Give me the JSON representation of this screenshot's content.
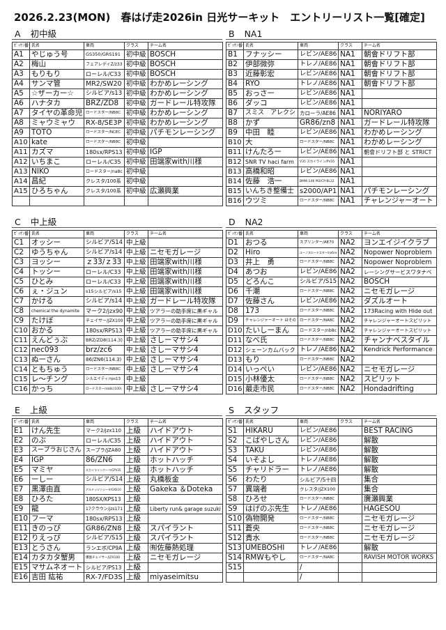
{
  "title": "2026.2.23(MON)　春はげ走2026in 日光サーキット　エントリーリスト一覧[確定]",
  "headers": [
    "ｾﾞｯｹﾝ番号",
    "氏名",
    "車両",
    "クラス",
    "チーム名"
  ],
  "sections": [
    {
      "letter": "A",
      "title": "初中級",
      "rows": [
        [
          "A1",
          "やじゅう号",
          "GS350/GRS191",
          "初中級",
          "BOSCH"
        ],
        [
          "A2",
          "梅山",
          "フェアレディZ/z33",
          "初中級",
          "BOSCH"
        ],
        [
          "A3",
          "もりもり",
          "ローレル/C33",
          "初中級",
          "BOSCH"
        ],
        [
          "A4",
          "サンマ管",
          "MR2/SW20",
          "初中級",
          "わかめレーシング"
        ],
        [
          "A5",
          "☆ザーカー☆",
          "シルビア/s13",
          "初中級",
          "わかめレーシング"
        ],
        [
          "A6",
          "ハナタカ",
          "BRZ/ZD8",
          "初中級",
          "ガードレール特攻隊"
        ],
        [
          "A7",
          "タイヤの革命児",
          "ロードスター/NB8C",
          "初中級",
          "わかめレーシング"
        ],
        [
          "A8",
          "ミャウミャウ",
          "RX-8/SE3P",
          "初中級",
          "わかめレーシング"
        ],
        [
          "A9",
          "TOTO",
          "ロードスター/NCEC",
          "初中級",
          "パチモンレーシング"
        ],
        [
          "A10",
          "kate",
          "ロードスター/NB8C",
          "初中級",
          ""
        ],
        [
          "A11",
          "カズマ",
          "180sx/RPS13",
          "初中級",
          "IGP"
        ],
        [
          "A12",
          "いちまこ",
          "ローレル/C35",
          "初中級",
          "田端家with川様"
        ],
        [
          "A13",
          "NIKO",
          "ロードスター/na8c",
          "初中級",
          ""
        ],
        [
          "A14",
          "昌紀",
          "クレスタ/100系",
          "初中級",
          ""
        ],
        [
          "A15",
          "ひろちゃん",
          "クレスタ/100系",
          "初中級",
          "広瀬興業"
        ],
        [
          "",
          "",
          "",
          "",
          ""
        ]
      ]
    },
    {
      "letter": "B",
      "title": "NA1",
      "rows": [
        [
          "B1",
          "フナッシー",
          "レビン/AE86",
          "NA1",
          "朝會ドリフト部"
        ],
        [
          "B2",
          "伊部微弥",
          "トレノ/AE86",
          "NA1",
          "朝會ドリフト部"
        ],
        [
          "B3",
          "近藤彰宏",
          "レビン/AE86",
          "NA1",
          "朝會ドリフト部"
        ],
        [
          "B4",
          "RYO",
          "トレノ/AE86",
          "NA1",
          "朝會ドリフト部"
        ],
        [
          "B5",
          "おっさー",
          "レビン/AE86",
          "NA1",
          ""
        ],
        [
          "B6",
          "ダッコ",
          "レビン/AE86",
          "NA1",
          ""
        ],
        [
          "B7",
          "スミス　アレクシ",
          "カローラ/AE86",
          "NA1",
          "NORIYARO"
        ],
        [
          "B8",
          "かず",
          "GR86/zn8",
          "NA1",
          "ガードレール特攻隊"
        ],
        [
          "B9",
          "中田　睦",
          "レビン/AE86",
          "NA1",
          "わかめレーシング"
        ],
        [
          "B10",
          "大",
          "ロードスター/NB8C",
          "NA1",
          "わかめレーシング"
        ],
        [
          "B11",
          "けんたろー",
          "レビン/AE86",
          "NA1",
          "朝會ドリフト部 と STRICT"
        ],
        [
          "B12",
          "SNR TV haci farm",
          "V35 スカイライン/PV35",
          "NA1",
          ""
        ],
        [
          "B13",
          "高橋和昭",
          "レビン/AE86",
          "NA1",
          ""
        ],
        [
          "B14",
          "佐藤　浩一",
          "BMW E46 M3/CP-BL32",
          "NA1",
          ""
        ],
        [
          "B15",
          "いんちき整備士",
          "s2000/AP1",
          "NA1",
          "パチモンレーシング"
        ],
        [
          "B16",
          "ウツミ",
          "ロードスター/NB8C",
          "NA1",
          "チャレンジャーオート"
        ]
      ]
    },
    {
      "letter": "C",
      "title": "中上級",
      "rows": [
        [
          "C1",
          "オッシー",
          "シルビア/S14",
          "中上級",
          ""
        ],
        [
          "C2",
          "ゆうちゃん",
          "シルビア/s14",
          "中上級",
          "ニセモガレージ"
        ],
        [
          "C3",
          "ヨッシー",
          "ｚ33/ｚ33",
          "中上級",
          "田端家with川様"
        ],
        [
          "C4",
          "トッシー",
          "ローレル/C33",
          "中上級",
          "田端家with川様"
        ],
        [
          "C5",
          "ひとみ",
          "ローレル/C33",
          "中上級",
          "田端家with川様"
        ],
        [
          "C6",
          "ぇ・ジュン",
          "s15シルビア/s15",
          "中上級",
          "田端家with川様"
        ],
        [
          "C7",
          "かける",
          "シルビア/s14",
          "中上級",
          "ガードレール特攻隊"
        ],
        [
          "C8",
          "chemical the dynamite",
          "マーク2/jzx90",
          "中上級",
          "ツアラーの助手席に黒ギャル"
        ],
        [
          "C9",
          "たけぼ",
          "チェイサー/JZX100",
          "中上級",
          "ツアラーの助手席に黒ギャル"
        ],
        [
          "C10",
          "おかる",
          "180sx/RPS13",
          "中上級",
          "ツアラーの助手席に黒ギャル"
        ],
        [
          "C11",
          "えんどぅぶ",
          "BRZ/ZD8(114.3)",
          "中上級",
          "さしーマサシ4"
        ],
        [
          "C12",
          "nec093",
          "brz/zc6",
          "中上級",
          "さしーマサシ4"
        ],
        [
          "C13",
          "ぬーさん",
          "86/ZN6(114.3)",
          "中上級",
          "さしーマサシ4"
        ],
        [
          "C14",
          "ともちゅう",
          "ロードスター/NB8C",
          "中上級",
          "さしーマサシ4"
        ],
        [
          "C15",
          "レ～チング",
          "シルエイティ/rps13",
          "中上級",
          ""
        ],
        [
          "C16",
          "かっち",
          "ロードスター/nb8c(100)",
          "中上級",
          "さしーマサシ4"
        ]
      ]
    },
    {
      "letter": "D",
      "title": "NA2",
      "rows": [
        [
          "D1",
          "おつる",
          "スプリンター/AE70",
          "NA2",
          "ヨンエイジイクラブ"
        ],
        [
          "D2",
          "Hiro",
          "ユーノスロードスター/na6ce",
          "NA2",
          "Nopower Noproblem"
        ],
        [
          "D3",
          "井上　勇",
          "ロードスター/NB8C",
          "NA2",
          "Nopower Noproblem"
        ],
        [
          "D4",
          "あつお",
          "レビン/AE86",
          "NA2",
          "レーシングサービスワタナベ"
        ],
        [
          "D5",
          "どろんこ",
          "シルビア/S15",
          "NA2",
          "BOSCH"
        ],
        [
          "D6",
          "千潮",
          "ロードスター/NB8C",
          "NA2",
          "ニセモガレージ"
        ],
        [
          "D7",
          "佐藤さん",
          "レビン/AE86",
          "NA2",
          "ダズルオート"
        ],
        [
          "D8",
          "173",
          "ロードスター/NB8C",
          "NA2",
          "173Racing with Hide out"
        ],
        [
          "D9",
          "チャレンジャーオート ほその",
          "ロードスター/NA8C",
          "NA2",
          "チャレンジャーオートスピリット"
        ],
        [
          "D10",
          "たいしーまん",
          "ロードスター/nb8c",
          "NA2",
          "チャレンジャーオートスピリット"
        ],
        [
          "D11",
          "なべ氏",
          "ロードスター/NB8C",
          "NA2",
          "チャンナベスタイル"
        ],
        [
          "D12",
          "シェーンカムバック",
          "トレノ/AE86",
          "NA2",
          "Kendrick Performance"
        ],
        [
          "D13",
          "もり",
          "ロードスター/NB8C",
          "NA2",
          ""
        ],
        [
          "D14",
          "いっぺい",
          "レビン/AE86",
          "NA2",
          "ニセモガレージ"
        ],
        [
          "D15",
          "小林優太",
          "ロードスター/NB8C",
          "NA2",
          "スピリット"
        ],
        [
          "D16",
          "最走市民",
          "ロードスター/NB8C",
          "NA2",
          "Hondadrifting"
        ]
      ]
    },
    {
      "letter": "E",
      "title": "上級",
      "rows": [
        [
          "E1",
          "けん先生",
          "マーク2/jzx110",
          "上級",
          "ハイドアウト"
        ],
        [
          "E2",
          "のぶ",
          "ローレル/C35",
          "上級",
          "ハイドアウト"
        ],
        [
          "E3",
          "スープラおじさん",
          "スープラ/JZA80",
          "上級",
          "ハイドアウト"
        ],
        [
          "E4",
          "IGP",
          "86/ZN6",
          "上級",
          "ホットハッチ"
        ],
        [
          "E5",
          "マミヤ",
          "スカイラインクーペ/CPV35",
          "上級",
          "ホットハッチ"
        ],
        [
          "E6",
          "ーしー",
          "シルビア/S14",
          "上級",
          "丸橋板金"
        ],
        [
          "E7",
          "黒澤由直",
          "アルテッツァジータ/GXE10",
          "上級",
          "Gakeka ＆Doteka"
        ],
        [
          "E8",
          "ひろた",
          "180SX/KPS13",
          "上級",
          ""
        ],
        [
          "E9",
          "龍",
          "17クラウン/jzs171",
          "上級",
          "Liberty run& garage suzuki"
        ],
        [
          "E10",
          "フーマ",
          "180sx/RPS13",
          "上級",
          ""
        ],
        [
          "E11",
          "きのっぴ",
          "GR86/ZN8",
          "上級",
          "スパイラント"
        ],
        [
          "E12",
          "りえっぴ",
          "シルビア/S15",
          "上級",
          "スパイラント"
        ],
        [
          "E13",
          "とうさん",
          "ランエボ/CP9A",
          "上級",
          "㈲佐藤熱処理"
        ],
        [
          "E14",
          "カタカタ蟹男",
          "爆発チェイサー/JZX100",
          "上級",
          "ニセモガレージ"
        ],
        [
          "E15",
          "マサムネオート",
          "シルビア/PS13",
          "上級",
          ""
        ],
        [
          "E16",
          "吉田 紘祐",
          "RX-7/FD3S",
          "上級",
          "miyaseimitsu"
        ]
      ]
    },
    {
      "letter": "S",
      "title": "スタッフ",
      "rows": [
        [
          "S1",
          "HIKARU",
          "レビン/AE86",
          "",
          "BEST RACING"
        ],
        [
          "S2",
          "こばやしさん",
          "レビン/AE86",
          "",
          "解散"
        ],
        [
          "S3",
          "TAKU",
          "レビン/AE86",
          "",
          "解散"
        ],
        [
          "S4",
          "いそよし",
          "トレノ/AE86",
          "",
          "解散"
        ],
        [
          "S5",
          "チャリドラー",
          "トレノ/AE86",
          "",
          "解散"
        ],
        [
          "S6",
          "わたり",
          "シルビア/S十四",
          "",
          "集合"
        ],
        [
          "S7",
          "異端者",
          "クレスタ/JZX100",
          "",
          "集合"
        ],
        [
          "S8",
          "ひろせ",
          "ロードスター/NB8C",
          "",
          "廣瀬興業"
        ],
        [
          "S9",
          "はげのぶ先生",
          "トレノ/AE86",
          "",
          "HAGESOU"
        ],
        [
          "S10",
          "偽物開発",
          "ロードスター/NB8C",
          "",
          "ニセモガレージ"
        ],
        [
          "S11",
          "蒼央",
          "ロードスター/NB8C",
          "",
          "ニセモガレージ"
        ],
        [
          "S12",
          "貴水",
          "ロードスター/NB8C",
          "",
          "ニセモガレージ"
        ],
        [
          "S13",
          "UMEBOSHI",
          "トレノ/AE86",
          "",
          "解散"
        ],
        [
          "S14",
          "RMWもやし",
          "ロードスター/NA8C",
          "",
          "RAVISH MOTOR WORKS"
        ],
        [
          "S15",
          "",
          "/",
          "",
          ""
        ],
        [
          "",
          "",
          "/",
          "",
          ""
        ]
      ]
    }
  ]
}
